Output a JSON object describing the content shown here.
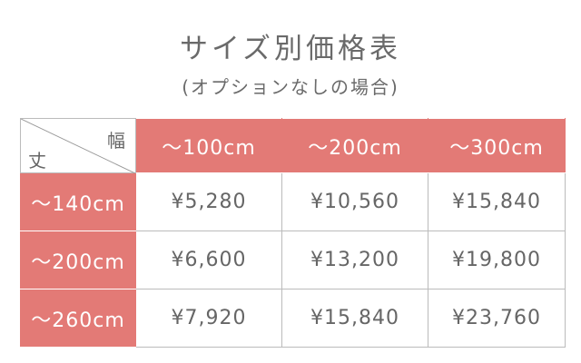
{
  "title": "サイズ別価格表",
  "subtitle": "(オプションなしの場合)",
  "accent_color": "#e37a76",
  "table": {
    "corner": {
      "width_label": "幅",
      "length_label": "丈"
    },
    "columns": [
      "～100cm",
      "～200cm",
      "～300cm"
    ],
    "rows": [
      {
        "label": "～140cm",
        "prices": [
          "¥5,280",
          "¥10,560",
          "¥15,840"
        ]
      },
      {
        "label": "～200cm",
        "prices": [
          "¥6,600",
          "¥13,200",
          "¥19,800"
        ]
      },
      {
        "label": "～260cm",
        "prices": [
          "¥7,920",
          "¥15,840",
          "¥23,760"
        ]
      }
    ]
  }
}
